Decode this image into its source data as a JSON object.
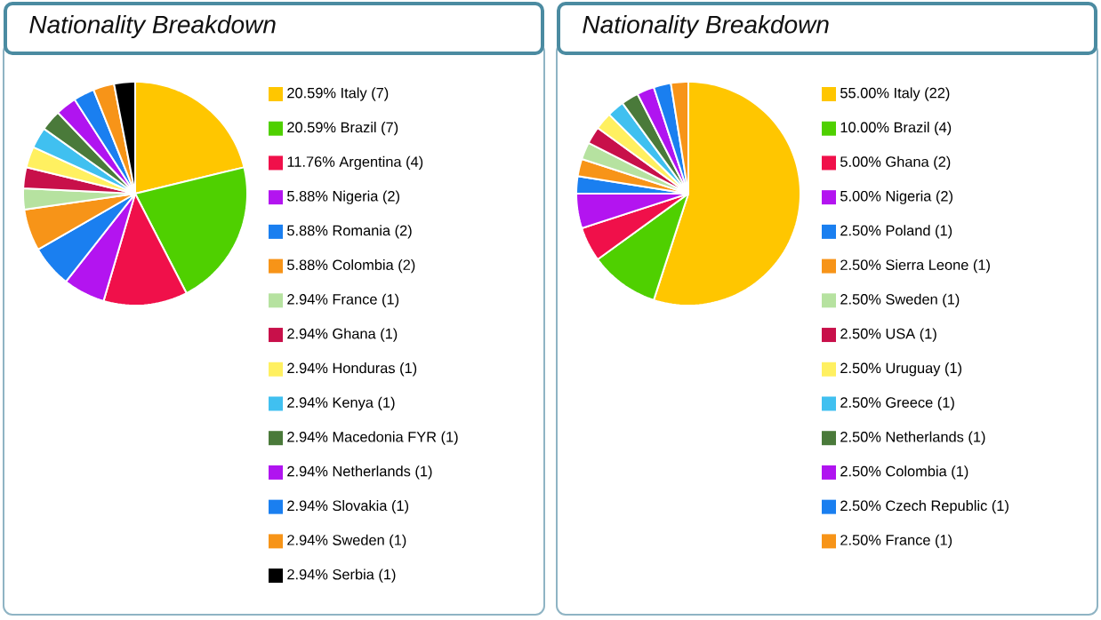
{
  "chart_data": [
    {
      "type": "pie",
      "title": "Nationality Breakdown",
      "legend": "right",
      "categories": [
        "20.59% Italy (7)",
        "20.59% Brazil (7)",
        "11.76% Argentina (4)",
        "5.88% Nigeria (2)",
        "5.88% Romania (2)",
        "5.88% Colombia (2)",
        "2.94% France (1)",
        "2.94% Ghana (1)",
        "2.94% Honduras (1)",
        "2.94% Kenya (1)",
        "2.94% Macedonia FYR (1)",
        "2.94% Netherlands (1)",
        "2.94% Slovakia (1)",
        "2.94% Sweden (1)",
        "2.94% Serbia (1)"
      ],
      "values": [
        20.59,
        20.59,
        11.76,
        5.88,
        5.88,
        5.88,
        2.94,
        2.94,
        2.94,
        2.94,
        2.94,
        2.94,
        2.94,
        2.94,
        2.94
      ],
      "colors": [
        "#ffc600",
        "#4fd000",
        "#f0104a",
        "#b314f0",
        "#1a7ff0",
        "#f79418",
        "#b6e2a0",
        "#c8104a",
        "#fff060",
        "#40c0f0",
        "#4a7a3a",
        "#b014f0",
        "#1a7ff0",
        "#f79418",
        "#000000"
      ]
    },
    {
      "type": "pie",
      "title": "Nationality Breakdown",
      "legend": "right",
      "categories": [
        "55.00% Italy (22)",
        "10.00% Brazil (4)",
        "5.00% Ghana (2)",
        "5.00% Nigeria (2)",
        "2.50% Poland (1)",
        "2.50% Sierra Leone (1)",
        "2.50% Sweden (1)",
        "2.50% USA (1)",
        "2.50% Uruguay (1)",
        "2.50% Greece (1)",
        "2.50% Netherlands (1)",
        "2.50% Colombia (1)",
        "2.50% Czech Republic (1)",
        "2.50% France (1)"
      ],
      "values": [
        55.0,
        10.0,
        5.0,
        5.0,
        2.5,
        2.5,
        2.5,
        2.5,
        2.5,
        2.5,
        2.5,
        2.5,
        2.5,
        2.5
      ],
      "colors": [
        "#ffc600",
        "#4fd000",
        "#f0104a",
        "#b314f0",
        "#1a7ff0",
        "#f79418",
        "#b6e2a0",
        "#c8104a",
        "#fff060",
        "#40c0f0",
        "#4a7a3a",
        "#b014f0",
        "#1a7ff0",
        "#f79418"
      ]
    }
  ]
}
